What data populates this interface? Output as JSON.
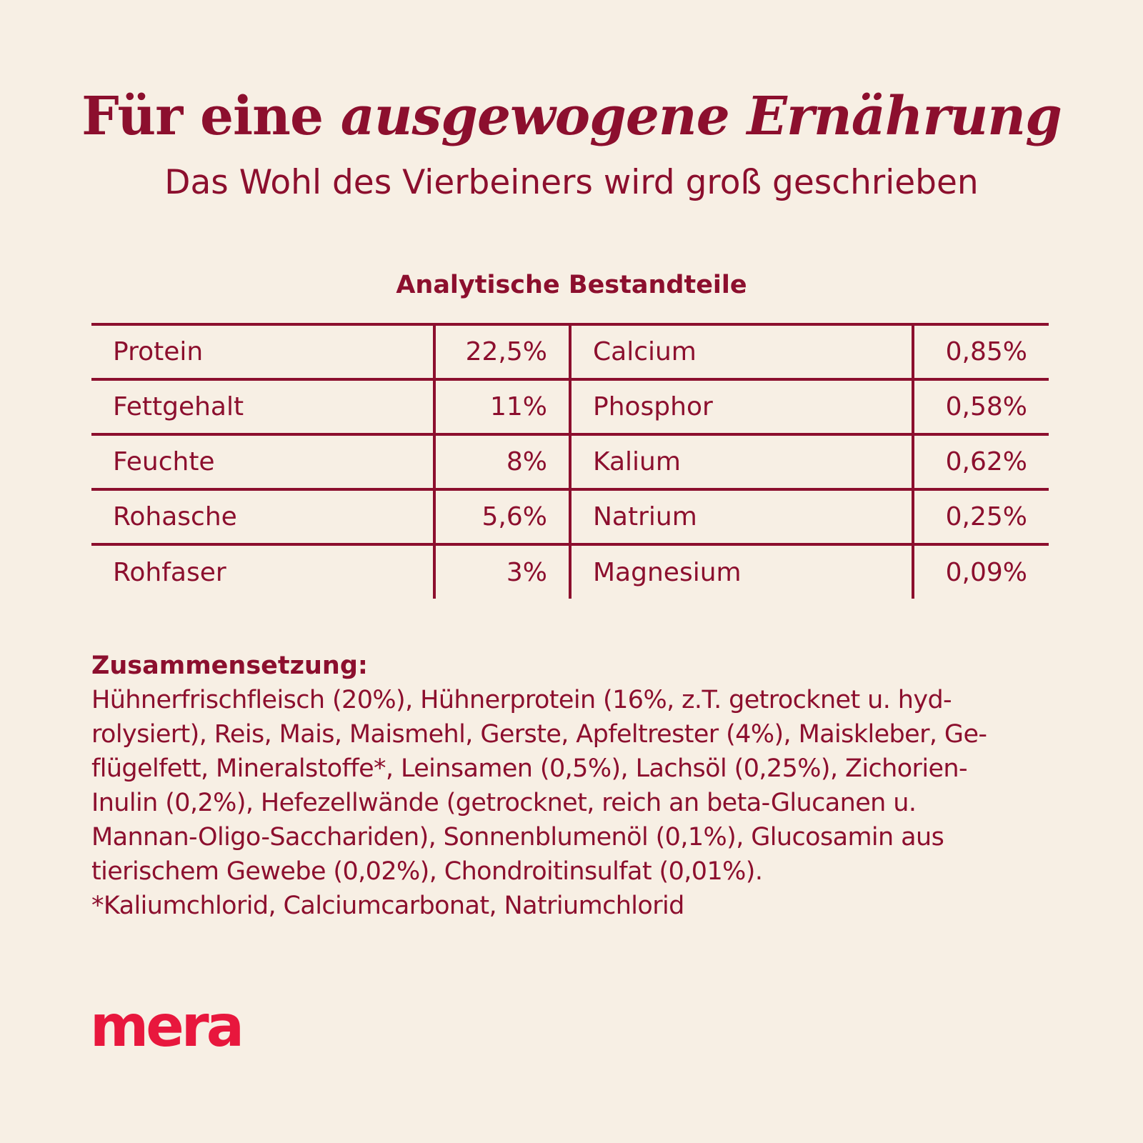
{
  "header": {
    "headline_regular": "Für eine ",
    "headline_italic": "ausgewogene Ernährung",
    "subtitle": "Das Wohl des Vierbeiners wird groß geschrieben"
  },
  "analysis": {
    "title": "Analytische Bestandteile",
    "rows": [
      {
        "name_left": "Protein",
        "value_left": "22,5%",
        "name_right": "Calcium",
        "value_right": "0,85%"
      },
      {
        "name_left": "Fettgehalt",
        "value_left": "11%",
        "name_right": "Phosphor",
        "value_right": "0,58%"
      },
      {
        "name_left": "Feuchte",
        "value_left": "8%",
        "name_right": "Kalium",
        "value_right": "0,62%"
      },
      {
        "name_left": "Rohasche",
        "value_left": "5,6%",
        "name_right": "Natrium",
        "value_right": "0,25%"
      },
      {
        "name_left": "Rohfaser",
        "value_left": "3%",
        "name_right": "Magnesium",
        "value_right": "0,09%"
      }
    ]
  },
  "composition": {
    "title": "Zusammensetzung:",
    "lines": [
      "Hühnerfrischfleisch (20%), Hühnerprotein (16%, z.T. getrocknet u. hyd-",
      "rolysiert), Reis, Mais, Maismehl, Gerste, Apfeltrester (4%), Maiskleber, Ge-",
      "flügelfett, Mineralstoffe*, Leinsamen (0,5%), Lachsöl (0,25%), Zichorien-",
      "Inulin (0,2%), Hefezellwände (getrocknet, reich an beta-Glucanen u.",
      "Mannan-Oligo-Sacchariden), Sonnenblumenöl (0,1%), Glucosamin aus",
      "tierischem Gewebe (0,02%), Chondroitinsulfat (0,01%).",
      "*Kaliumchlorid, Calciumcarbonat, Natriumchlorid"
    ]
  },
  "brand": {
    "logo_text": "mera",
    "logo_color": "#e8173d"
  },
  "colors": {
    "background": "#f7efe4",
    "primary": "#8c0f2e"
  }
}
